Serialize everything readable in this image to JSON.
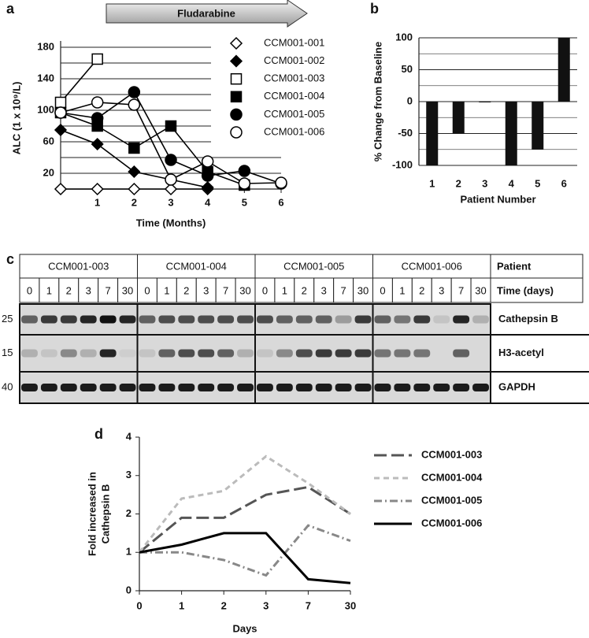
{
  "chart_data": [
    {
      "type": "line",
      "panel_label": "a",
      "annotation": "Fludarabine",
      "xlabel": "Time (Months)",
      "ylabel": "ALC (1 x 10⁹/L)",
      "xlim": [
        0,
        6
      ],
      "xticks": [
        1,
        2,
        3,
        4,
        5,
        6
      ],
      "ylim": [
        0,
        180
      ],
      "yticks": [
        20,
        60,
        100,
        140,
        180
      ],
      "minor_grid": [
        40,
        80,
        120,
        160
      ],
      "grid": true,
      "legend": "right",
      "series": [
        {
          "name": "CCM001-001",
          "color": "#000000",
          "marker": "diamond-open",
          "x": [
            0,
            1,
            2,
            3,
            4
          ],
          "values": [
            0,
            0,
            0,
            0,
            0
          ]
        },
        {
          "name": "CCM001-002",
          "color": "#000000",
          "marker": "diamond",
          "x": [
            0,
            1,
            2,
            3,
            4
          ],
          "values": [
            75,
            57,
            22,
            12,
            2
          ]
        },
        {
          "name": "CCM001-003",
          "color": "#000000",
          "marker": "square-open",
          "x": [
            0,
            1
          ],
          "values": [
            110,
            165
          ]
        },
        {
          "name": "CCM001-004",
          "color": "#000000",
          "marker": "square",
          "x": [
            0,
            1,
            2,
            3,
            4,
            5
          ],
          "values": [
            97,
            80,
            52,
            80,
            22,
            5
          ]
        },
        {
          "name": "CCM001-005",
          "color": "#000000",
          "marker": "circle",
          "x": [
            0,
            1,
            2,
            3,
            4,
            5,
            6
          ],
          "values": [
            97,
            90,
            123,
            37,
            17,
            23,
            7
          ]
        },
        {
          "name": "CCM001-006",
          "color": "#000000",
          "marker": "circle-open",
          "x": [
            0,
            1,
            2,
            3,
            4,
            5,
            6
          ],
          "values": [
            97,
            110,
            107,
            12,
            35,
            7,
            8
          ]
        }
      ]
    },
    {
      "type": "bar",
      "panel_label": "b",
      "xlabel": "Patient Number",
      "ylabel": "% Change from Baseline",
      "categories": [
        "1",
        "2",
        "3",
        "4",
        "5",
        "6"
      ],
      "values": [
        -100,
        -50,
        0,
        -100,
        -75,
        100
      ],
      "color": "#111111",
      "ylim": [
        -100,
        100
      ],
      "yticks": [
        -100,
        -50,
        0,
        50,
        100
      ],
      "minor_grid": [
        -75,
        -25,
        25,
        75
      ],
      "grid": true
    },
    {
      "type": "line",
      "panel_label": "d",
      "xlabel": "Days",
      "ylabel": [
        "Fold increased in",
        "Cathepsin B"
      ],
      "categories": [
        "0",
        "1",
        "2",
        "3",
        "7",
        "30"
      ],
      "ylim": [
        0,
        4
      ],
      "yticks": [
        0,
        1,
        2,
        3,
        4
      ],
      "grid": false,
      "legend": "right",
      "series": [
        {
          "name": "CCM001-003",
          "color": "#555555",
          "dash": "long-dash",
          "values": [
            1,
            1.9,
            1.9,
            2.5,
            2.7,
            2
          ]
        },
        {
          "name": "CCM001-004",
          "color": "#bbbbbb",
          "dash": "short-dash",
          "values": [
            1,
            2.4,
            2.6,
            3.5,
            2.8,
            2
          ]
        },
        {
          "name": "CCM001-005",
          "color": "#888888",
          "dash": "dash-dot",
          "values": [
            1,
            1,
            0.8,
            0.4,
            1.7,
            1.3
          ]
        },
        {
          "name": "CCM001-006",
          "color": "#000000",
          "dash": "solid",
          "values": [
            1,
            1.2,
            1.5,
            1.5,
            0.3,
            0.2
          ]
        }
      ]
    }
  ],
  "blot": {
    "panel_label": "c",
    "patient_header": "Patient",
    "time_header": "Time (days)",
    "patients": [
      "CCM001-003",
      "CCM001-004",
      "CCM001-005",
      "CCM001-006"
    ],
    "times": [
      "0",
      "1",
      "2",
      "3",
      "7",
      "30"
    ],
    "proteins": [
      {
        "name": "Cathepsin B",
        "marker": "25"
      },
      {
        "name": "H3-acetyl",
        "marker": "15"
      },
      {
        "name": "GAPDH",
        "marker": "40"
      }
    ]
  }
}
